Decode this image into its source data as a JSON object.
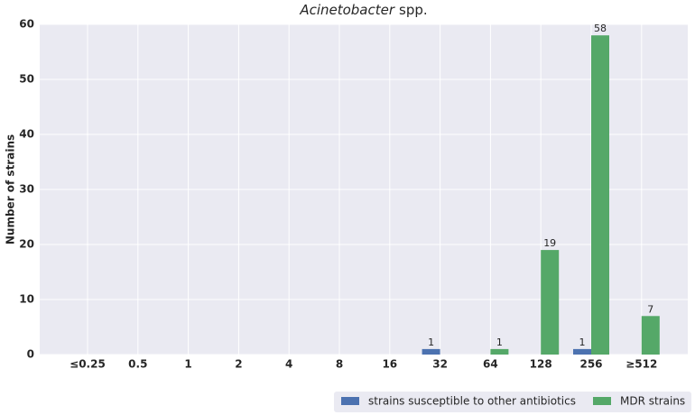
{
  "chart_data": {
    "type": "bar",
    "title": [
      "Acinetobacter",
      "spp."
    ],
    "y_label": "Number of strains",
    "categories": [
      "≤0.25",
      "0.5",
      "1",
      "2",
      "4",
      "8",
      "16",
      "32",
      "64",
      "128",
      "256",
      "≥512"
    ],
    "series": [
      {
        "name": "strains susceptible to other antibiotics",
        "color": "#4c72b0",
        "values": [
          0,
          0,
          0,
          0,
          0,
          0,
          0,
          1,
          0,
          0,
          1,
          0
        ]
      },
      {
        "name": "MDR strains",
        "color": "#55a868",
        "values": [
          0,
          0,
          0,
          0,
          0,
          0,
          0,
          0,
          1,
          19,
          58,
          7
        ]
      }
    ],
    "ylim": [
      0,
      60
    ],
    "yticks": [
      0,
      10,
      20,
      30,
      40,
      50,
      60
    ],
    "grid": true,
    "legend": "bottom right"
  }
}
